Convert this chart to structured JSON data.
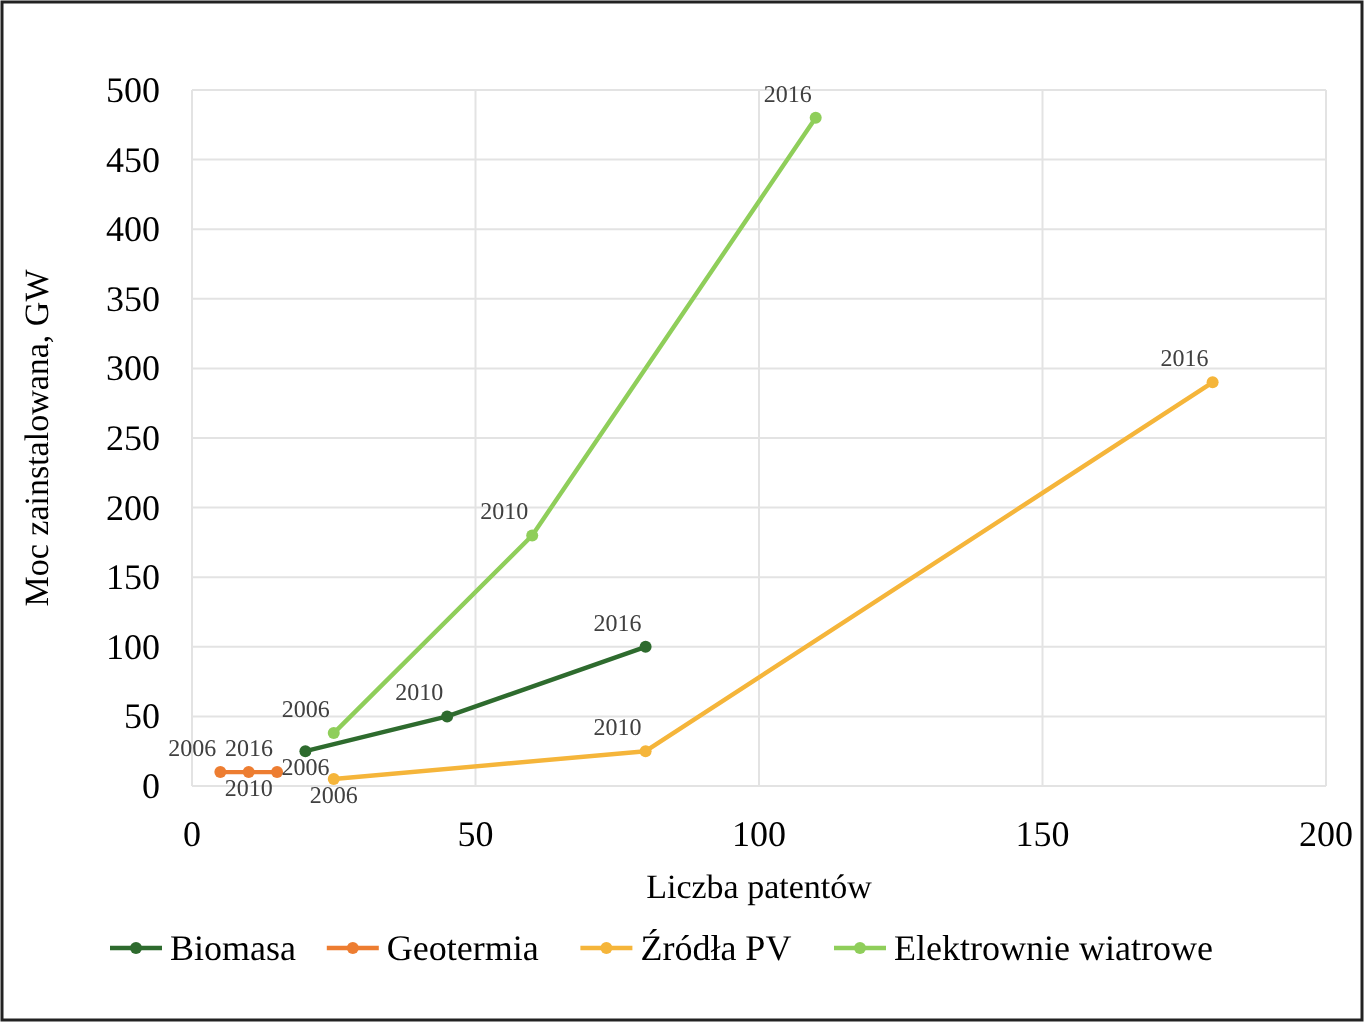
{
  "chart_data": {
    "type": "line",
    "xlabel": "Liczba patentów",
    "ylabel": "Moc zainstalowana, GW",
    "xlim": [
      0,
      200
    ],
    "xticks": [
      0,
      50,
      100,
      150,
      200
    ],
    "ylim": [
      0,
      500
    ],
    "yticks": [
      0,
      50,
      100,
      150,
      200,
      250,
      300,
      350,
      400,
      450,
      500
    ],
    "grid": true,
    "legend": "bottom",
    "marker": "circle",
    "series": [
      {
        "name": "Biomasa",
        "color": "#2e6b2e",
        "x": [
          20,
          45,
          80
        ],
        "values": [
          25,
          50,
          100
        ]
      },
      {
        "name": "Geotermia",
        "color": "#ed7d31",
        "x": [
          5,
          10,
          15
        ],
        "values": [
          10,
          10,
          10
        ]
      },
      {
        "name": "Źródła PV",
        "color": "#f5b53a",
        "x": [
          25,
          80,
          180
        ],
        "values": [
          5,
          25,
          290
        ]
      },
      {
        "name": "Elektrownie wiatrowe",
        "color": "#8fce5a",
        "x": [
          25,
          60,
          110
        ],
        "values": [
          38,
          180,
          480
        ]
      }
    ],
    "annotations": [
      {
        "text": "2006",
        "x": 5,
        "y": 10
      },
      {
        "text": "2010",
        "x": 10,
        "y": 10
      },
      {
        "text": "2016",
        "x": 15,
        "y": 10
      },
      {
        "text": "2006",
        "x": 20,
        "y": 25
      },
      {
        "text": "2010",
        "x": 45,
        "y": 50
      },
      {
        "text": "2016",
        "x": 80,
        "y": 100
      },
      {
        "text": "2006",
        "x": 25,
        "y": 5
      },
      {
        "text": "2010",
        "x": 80,
        "y": 25
      },
      {
        "text": "2016",
        "x": 180,
        "y": 290
      },
      {
        "text": "2006",
        "x": 25,
        "y": 38
      },
      {
        "text": "2010",
        "x": 60,
        "y": 180
      },
      {
        "text": "2016",
        "x": 110,
        "y": 480
      }
    ]
  }
}
